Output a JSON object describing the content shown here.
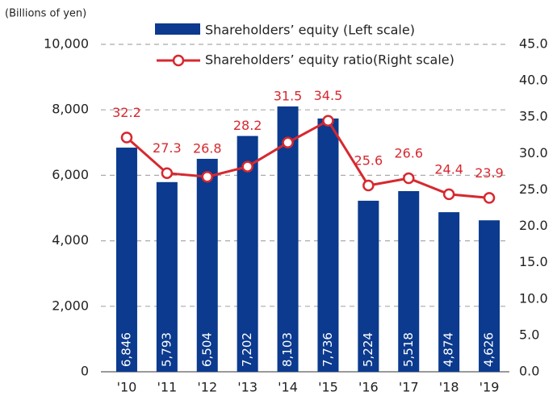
{
  "chart_data": {
    "type": "bar",
    "unit_label": "(Billions of yen)",
    "categories": [
      "'10",
      "'11",
      "'12",
      "'13",
      "'14",
      "'15",
      "'16",
      "'17",
      "'18",
      "'19"
    ],
    "series": [
      {
        "name": "Shareholders’ equity (Left scale)",
        "type": "bar",
        "axis": "y",
        "color": "#0b3a8e",
        "values": [
          6846,
          5793,
          6504,
          7202,
          8103,
          7736,
          5224,
          5518,
          4874,
          4626
        ],
        "value_labels": [
          "6,846",
          "5,793",
          "6,504",
          "7,202",
          "8,103",
          "7,736",
          "5,224",
          "5,518",
          "4,874",
          "4,626"
        ]
      },
      {
        "name": "Shareholders’ equity ratio(Right scale)",
        "type": "line",
        "axis": "y2",
        "color": "#d7282f",
        "values": [
          32.2,
          27.3,
          26.8,
          28.2,
          31.5,
          34.5,
          25.6,
          26.6,
          24.4,
          23.9
        ]
      }
    ],
    "ylim": [
      0,
      10000
    ],
    "yticks": [
      0,
      {
        "value": 2000,
        "label": "2,000"
      },
      {
        "value": 4000,
        "label": "4,000"
      },
      {
        "value": 6000,
        "label": "6,000"
      },
      {
        "value": 8000,
        "label": "8,000"
      },
      {
        "value": 10000,
        "label": "10,000"
      }
    ],
    "y2lim": [
      0,
      45
    ],
    "y2ticks": [
      {
        "value": 0,
        "label": "0.0"
      },
      {
        "value": 5,
        "label": "5.0"
      },
      {
        "value": 10,
        "label": "10.0"
      },
      {
        "value": 15,
        "label": "15.0"
      },
      {
        "value": 20,
        "label": "20.0"
      },
      {
        "value": 25,
        "label": "25.0"
      },
      {
        "value": 30,
        "label": "30.0"
      },
      {
        "value": 35,
        "label": "35.0"
      },
      {
        "value": 40,
        "label": "40.0"
      },
      {
        "value": 45,
        "label": "45.0"
      }
    ],
    "grid": true
  }
}
